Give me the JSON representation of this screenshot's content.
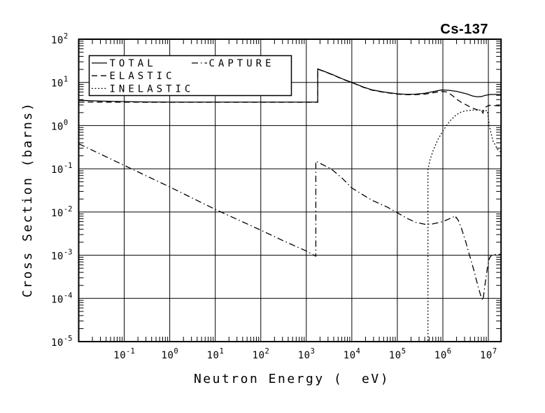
{
  "title": "Cs-137",
  "colors": {
    "foreground": "#000000",
    "background": "#ffffff"
  },
  "chart_data": {
    "type": "line",
    "title": "Cs-137",
    "xlabel": "Neutron Energy (  eV)",
    "ylabel": "Cross Section (barns)",
    "xscale": "log",
    "yscale": "log",
    "xlim": [
      0.01,
      19000000
    ],
    "ylim": [
      1e-05,
      100
    ],
    "grid": true,
    "x_tick_exponents": [
      -1,
      0,
      1,
      2,
      3,
      4,
      5,
      6,
      7
    ],
    "y_tick_exponents": [
      2,
      1,
      0,
      -1,
      -2,
      -3,
      -4,
      -5
    ],
    "legend_position": "top-left inside",
    "series": [
      {
        "name": "TOTAL",
        "style": "solid",
        "points": [
          [
            0.01,
            3.85
          ],
          [
            0.03,
            3.7
          ],
          [
            0.1,
            3.6
          ],
          [
            0.3,
            3.53
          ],
          [
            1,
            3.5
          ],
          [
            10,
            3.5
          ],
          [
            100,
            3.5
          ],
          [
            1000,
            3.5
          ],
          [
            1780,
            3.5
          ],
          [
            1780,
            20.5
          ],
          [
            2500,
            18.0
          ],
          [
            4000,
            14.8
          ],
          [
            6300,
            12.0
          ],
          [
            10000,
            10.0
          ],
          [
            18000,
            7.8
          ],
          [
            28000,
            6.7
          ],
          [
            50000,
            6.0
          ],
          [
            100000,
            5.45
          ],
          [
            160000,
            5.3
          ],
          [
            250000,
            5.35
          ],
          [
            400000,
            5.6
          ],
          [
            600000,
            6.1
          ],
          [
            950000,
            6.7
          ],
          [
            1300000,
            6.6
          ],
          [
            2000000,
            6.2
          ],
          [
            3300000,
            5.45
          ],
          [
            4500000,
            4.85
          ],
          [
            5600000,
            4.65
          ],
          [
            7000000,
            4.7
          ],
          [
            8500000,
            5.0
          ],
          [
            11000000,
            5.25
          ],
          [
            19000000,
            5.3
          ]
        ]
      },
      {
        "name": "ELASTIC",
        "style": "dashed",
        "points": [
          [
            0.01,
            3.5
          ],
          [
            0.1,
            3.48
          ],
          [
            1,
            3.47
          ],
          [
            100,
            3.47
          ],
          [
            1780,
            3.47
          ],
          [
            1780,
            20.2
          ],
          [
            2500,
            17.8
          ],
          [
            4000,
            14.6
          ],
          [
            6300,
            11.8
          ],
          [
            10000,
            9.9
          ],
          [
            18000,
            7.7
          ],
          [
            28000,
            6.6
          ],
          [
            50000,
            5.9
          ],
          [
            100000,
            5.35
          ],
          [
            160000,
            5.2
          ],
          [
            250000,
            5.2
          ],
          [
            400000,
            5.35
          ],
          [
            600000,
            5.75
          ],
          [
            950000,
            6.2
          ],
          [
            1250000,
            6.0
          ],
          [
            1600000,
            5.0
          ],
          [
            2000000,
            4.1
          ],
          [
            2600000,
            3.4
          ],
          [
            3300000,
            3.0
          ],
          [
            4200000,
            2.6
          ],
          [
            5500000,
            2.35
          ],
          [
            6500000,
            2.25
          ],
          [
            7200000,
            2.15
          ],
          [
            7600000,
            1.95
          ],
          [
            8000000,
            2.35
          ],
          [
            9000000,
            2.75
          ],
          [
            10500000,
            2.95
          ],
          [
            14000000,
            2.9
          ],
          [
            19000000,
            2.85
          ]
        ]
      },
      {
        "name": "INELASTIC",
        "style": "dotted",
        "points": [
          [
            470000,
            1.05e-05
          ],
          [
            470000,
            0.095
          ],
          [
            520000,
            0.16
          ],
          [
            600000,
            0.25
          ],
          [
            700000,
            0.37
          ],
          [
            800000,
            0.5
          ],
          [
            1000000,
            0.75
          ],
          [
            1200000,
            1.0
          ],
          [
            1500000,
            1.35
          ],
          [
            2000000,
            1.8
          ],
          [
            2500000,
            2.05
          ],
          [
            3200000,
            2.2
          ],
          [
            4500000,
            2.28
          ],
          [
            6000000,
            2.3
          ],
          [
            8000000,
            2.25
          ],
          [
            9500000,
            2.2
          ],
          [
            10500000,
            1.0
          ],
          [
            12500000,
            0.45
          ],
          [
            16000000,
            0.28
          ],
          [
            19000000,
            0.24
          ]
        ]
      },
      {
        "name": "CAPTURE",
        "style": "dashdot",
        "points": [
          [
            0.01,
            0.38
          ],
          [
            0.1,
            0.12
          ],
          [
            1,
            0.038
          ],
          [
            10,
            0.0115
          ],
          [
            100,
            0.0038
          ],
          [
            300,
            0.0022
          ],
          [
            1000,
            0.00125
          ],
          [
            1620,
            0.00095
          ],
          [
            1620,
            0.15
          ],
          [
            3500,
            0.1
          ],
          [
            6000,
            0.062
          ],
          [
            10000,
            0.036
          ],
          [
            20000,
            0.023
          ],
          [
            30000,
            0.018
          ],
          [
            60000,
            0.013
          ],
          [
            100000,
            0.0096
          ],
          [
            160000,
            0.0072
          ],
          [
            250000,
            0.0058
          ],
          [
            400000,
            0.0052
          ],
          [
            600000,
            0.0053
          ],
          [
            1000000,
            0.006
          ],
          [
            1400000,
            0.007
          ],
          [
            1700000,
            0.0077
          ],
          [
            1850000,
            0.007
          ],
          [
            1950000,
            0.0076
          ],
          [
            2200000,
            0.0063
          ],
          [
            2600000,
            0.004
          ],
          [
            3200000,
            0.002
          ],
          [
            3800000,
            0.00105
          ],
          [
            4800000,
            0.00045
          ],
          [
            6000000,
            0.00018
          ],
          [
            7000000,
            0.000105
          ],
          [
            7600000,
            9e-05
          ],
          [
            8500000,
            0.00022
          ],
          [
            9500000,
            0.0005
          ],
          [
            10500000,
            0.00085
          ],
          [
            12000000,
            0.00103
          ],
          [
            19000000,
            0.00105
          ]
        ]
      }
    ]
  }
}
